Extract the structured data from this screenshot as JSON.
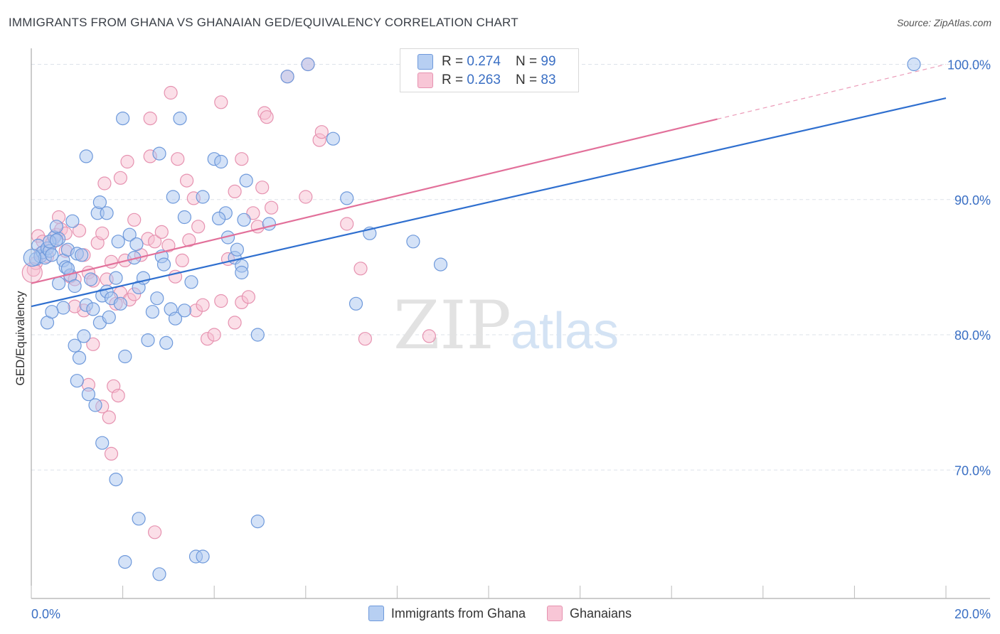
{
  "title": "IMMIGRANTS FROM GHANA VS GHANAIAN GED/EQUIVALENCY CORRELATION CHART",
  "source": "Source: ZipAtlas.com",
  "watermark": {
    "zip": "ZIP",
    "atlas": "atlas"
  },
  "colors": {
    "blue_fill": "#a9c6ef",
    "blue_stroke": "#6e99db",
    "blue_line": "#2f6fcf",
    "pink_fill": "#f7c0d2",
    "pink_stroke": "#e692b0",
    "pink_line": "#e2709a",
    "axis_label": "#3a6fc4",
    "grid": "#dde3ea"
  },
  "stats": {
    "blue": {
      "r_label": "R = ",
      "r": "0.274",
      "n_label": "N = ",
      "n": "99"
    },
    "pink": {
      "r_label": "R = ",
      "r": "0.263",
      "n_label": "N = ",
      "n": "83"
    }
  },
  "chart_data": {
    "type": "scatter",
    "xlabel": "",
    "ylabel": "GED/Equivalency",
    "xlim": [
      0,
      20
    ],
    "ylim": [
      60.5,
      101.5
    ],
    "x_tick_labels": [
      "0.0%",
      "20.0%"
    ],
    "y_ticks": [
      70,
      80,
      90,
      100
    ],
    "y_tick_labels": [
      "70.0%",
      "80.0%",
      "90.0%",
      "100.0%"
    ],
    "grid": true,
    "legend": [
      "Immigrants from Ghana",
      "Ghanaians"
    ],
    "series": [
      {
        "name": "Immigrants from Ghana",
        "regression": {
          "x0": 0,
          "y0": 82.1,
          "x1": 20,
          "y1": 97.5,
          "dashed_from": null
        },
        "points": [
          [
            0.1,
            85.6
          ],
          [
            0.15,
            86.6
          ],
          [
            0.2,
            85.8
          ],
          [
            0.25,
            86.1
          ],
          [
            0.3,
            85.7
          ],
          [
            0.35,
            86.4
          ],
          [
            0.4,
            86.2
          ],
          [
            0.45,
            85.9
          ],
          [
            0.5,
            87.2
          ],
          [
            0.55,
            88.0
          ],
          [
            0.6,
            87.1
          ],
          [
            0.7,
            85.5
          ],
          [
            0.75,
            85.0
          ],
          [
            0.8,
            86.3
          ],
          [
            0.85,
            84.4
          ],
          [
            0.9,
            88.4
          ],
          [
            0.95,
            83.6
          ],
          [
            1.0,
            86.0
          ],
          [
            0.35,
            80.9
          ],
          [
            0.7,
            82.0
          ],
          [
            0.95,
            79.2
          ],
          [
            1.05,
            78.3
          ],
          [
            1.15,
            79.9
          ],
          [
            1.25,
            75.6
          ],
          [
            1.4,
            74.8
          ],
          [
            1.5,
            80.9
          ],
          [
            1.55,
            82.9
          ],
          [
            1.65,
            83.2
          ],
          [
            1.75,
            82.7
          ],
          [
            1.85,
            84.2
          ],
          [
            1.95,
            82.3
          ],
          [
            2.05,
            78.4
          ],
          [
            2.15,
            87.4
          ],
          [
            2.25,
            85.7
          ],
          [
            2.35,
            83.5
          ],
          [
            2.45,
            84.2
          ],
          [
            2.55,
            79.6
          ],
          [
            2.65,
            81.7
          ],
          [
            2.75,
            82.7
          ],
          [
            2.85,
            85.8
          ],
          [
            2.95,
            79.4
          ],
          [
            3.05,
            81.9
          ],
          [
            3.15,
            81.2
          ],
          [
            3.35,
            81.8
          ],
          [
            1.2,
            93.2
          ],
          [
            1.45,
            89.0
          ],
          [
            1.5,
            89.8
          ],
          [
            1.65,
            89.0
          ],
          [
            2.0,
            96.0
          ],
          [
            2.8,
            93.4
          ],
          [
            3.25,
            96.0
          ],
          [
            3.1,
            90.2
          ],
          [
            3.75,
            90.2
          ],
          [
            3.35,
            88.7
          ],
          [
            4.0,
            93.0
          ],
          [
            4.15,
            92.8
          ],
          [
            4.25,
            89.0
          ],
          [
            4.3,
            87.2
          ],
          [
            4.1,
            88.6
          ],
          [
            4.45,
            85.7
          ],
          [
            4.5,
            86.3
          ],
          [
            4.6,
            85.1
          ],
          [
            4.7,
            91.4
          ],
          [
            4.65,
            88.5
          ],
          [
            4.95,
            80.0
          ],
          [
            5.2,
            88.2
          ],
          [
            5.6,
            99.1
          ],
          [
            6.05,
            100.0
          ],
          [
            6.6,
            94.5
          ],
          [
            6.9,
            90.1
          ],
          [
            7.1,
            82.3
          ],
          [
            7.4,
            87.5
          ],
          [
            8.35,
            86.9
          ],
          [
            8.95,
            85.2
          ],
          [
            19.3,
            100.0
          ],
          [
            1.0,
            76.6
          ],
          [
            1.2,
            82.2
          ],
          [
            1.55,
            72.0
          ],
          [
            1.85,
            69.3
          ],
          [
            2.35,
            66.4
          ],
          [
            2.05,
            63.2
          ],
          [
            2.8,
            62.3
          ],
          [
            3.6,
            63.6
          ],
          [
            3.75,
            63.6
          ],
          [
            4.95,
            66.2
          ],
          [
            1.35,
            81.9
          ],
          [
            0.45,
            81.7
          ],
          [
            0.6,
            83.8
          ],
          [
            1.3,
            84.1
          ],
          [
            0.4,
            86.9
          ],
          [
            0.55,
            87.0
          ],
          [
            1.1,
            85.9
          ],
          [
            0.8,
            84.9
          ],
          [
            1.9,
            86.9
          ],
          [
            2.3,
            86.7
          ],
          [
            2.9,
            85.2
          ],
          [
            3.5,
            83.9
          ],
          [
            4.6,
            84.6
          ],
          [
            1.7,
            81.3
          ]
        ]
      },
      {
        "name": "Ghanaians",
        "regression": {
          "x0": 0,
          "y0": 83.8,
          "x1": 20,
          "y1": 100.0,
          "dashed_from": 15.0
        },
        "points": [
          [
            0.05,
            84.8
          ],
          [
            0.1,
            85.3
          ],
          [
            0.15,
            87.3
          ],
          [
            0.2,
            86.0
          ],
          [
            0.25,
            86.9
          ],
          [
            0.35,
            85.8
          ],
          [
            0.45,
            86.8
          ],
          [
            0.55,
            87.4
          ],
          [
            0.65,
            87.8
          ],
          [
            0.75,
            86.2
          ],
          [
            0.85,
            84.3
          ],
          [
            0.95,
            84.1
          ],
          [
            1.05,
            87.7
          ],
          [
            1.15,
            85.9
          ],
          [
            1.25,
            84.6
          ],
          [
            1.35,
            84.0
          ],
          [
            1.45,
            86.8
          ],
          [
            1.55,
            87.5
          ],
          [
            1.65,
            84.1
          ],
          [
            1.75,
            85.4
          ],
          [
            1.85,
            82.3
          ],
          [
            1.95,
            83.1
          ],
          [
            2.05,
            85.5
          ],
          [
            2.15,
            82.6
          ],
          [
            2.25,
            83.0
          ],
          [
            2.4,
            85.9
          ],
          [
            2.55,
            87.1
          ],
          [
            2.7,
            86.9
          ],
          [
            2.85,
            87.6
          ],
          [
            3.0,
            86.6
          ],
          [
            3.15,
            84.3
          ],
          [
            3.3,
            85.5
          ],
          [
            3.45,
            87.0
          ],
          [
            3.6,
            81.8
          ],
          [
            3.75,
            82.2
          ],
          [
            3.85,
            79.7
          ],
          [
            4.0,
            80.0
          ],
          [
            4.15,
            82.5
          ],
          [
            4.3,
            85.6
          ],
          [
            4.45,
            80.9
          ],
          [
            4.6,
            82.4
          ],
          [
            4.75,
            82.8
          ],
          [
            1.15,
            81.8
          ],
          [
            1.25,
            76.3
          ],
          [
            1.35,
            79.3
          ],
          [
            1.55,
            74.7
          ],
          [
            1.7,
            73.9
          ],
          [
            1.75,
            71.2
          ],
          [
            1.8,
            76.2
          ],
          [
            1.9,
            75.5
          ],
          [
            2.7,
            65.4
          ],
          [
            0.6,
            88.7
          ],
          [
            0.75,
            87.5
          ],
          [
            1.6,
            91.2
          ],
          [
            1.95,
            91.6
          ],
          [
            2.1,
            92.8
          ],
          [
            2.6,
            93.2
          ],
          [
            2.6,
            96.0
          ],
          [
            3.05,
            97.9
          ],
          [
            3.2,
            93.0
          ],
          [
            3.4,
            91.4
          ],
          [
            3.55,
            90.1
          ],
          [
            4.15,
            97.2
          ],
          [
            4.45,
            90.6
          ],
          [
            4.6,
            93.0
          ],
          [
            4.85,
            89.0
          ],
          [
            4.95,
            88.0
          ],
          [
            5.1,
            96.4
          ],
          [
            5.15,
            96.1
          ],
          [
            5.25,
            89.4
          ],
          [
            5.05,
            90.9
          ],
          [
            5.6,
            99.1
          ],
          [
            6.0,
            90.2
          ],
          [
            6.3,
            94.4
          ],
          [
            6.35,
            95.0
          ],
          [
            6.05,
            100.0
          ],
          [
            6.9,
            88.2
          ],
          [
            7.2,
            84.9
          ],
          [
            7.3,
            79.7
          ],
          [
            8.7,
            79.9
          ],
          [
            0.95,
            82.1
          ],
          [
            2.25,
            88.5
          ],
          [
            3.65,
            88.0
          ]
        ]
      }
    ]
  }
}
